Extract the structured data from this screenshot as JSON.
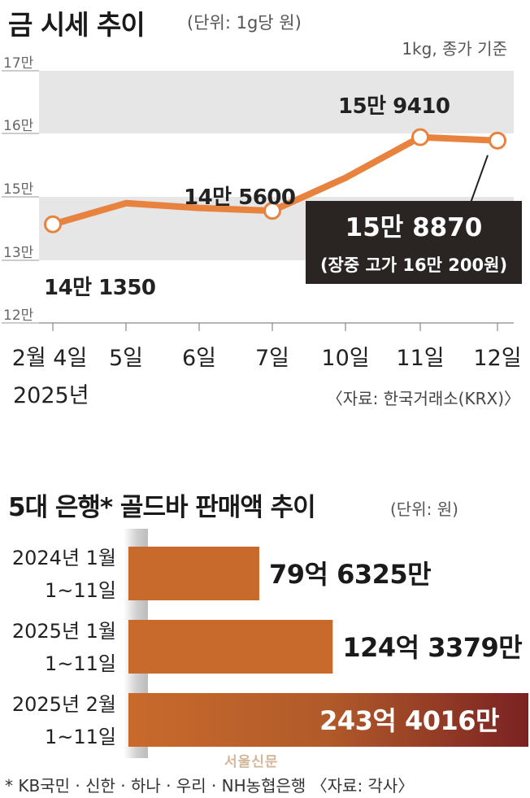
{
  "header": {
    "title": "금 시세 추이",
    "unit": "(단위: 1g당 원)",
    "basis": "1kg, 종가 기준"
  },
  "colors": {
    "line": "#e8823f",
    "band": "#e6e6e6",
    "callout_bg": "#2a2523",
    "bar_start": "#c86a2c",
    "bar_end": "#7a2222"
  },
  "chart_data": [
    {
      "type": "line",
      "title": "금 시세 추이",
      "unit": "(단위: 1g당 원)",
      "note": "1kg, 종가 기준",
      "categories": [
        "2월 4일",
        "5일",
        "6일",
        "7일",
        "10일",
        "11일",
        "12일"
      ],
      "x_sublabel": "2025년",
      "values": [
        141350,
        148000,
        146500,
        145600,
        153000,
        159410,
        158870
      ],
      "yticks": [
        120000,
        130000,
        150000,
        160000,
        170000
      ],
      "ytick_labels": [
        "12만",
        "13만",
        "15만",
        "16만",
        "17만"
      ],
      "ylim": [
        120000,
        170000
      ],
      "marked_points": [
        0,
        3,
        5,
        6
      ],
      "data_labels": [
        {
          "index": 0,
          "text": "14만 1350"
        },
        {
          "index": 3,
          "text": "14만 5600"
        },
        {
          "index": 5,
          "text": "15만 9410"
        }
      ],
      "callout": {
        "index": 6,
        "value_text": "15만 8870",
        "sub_text": "(장중 고가 16만 200원)"
      },
      "source": "〈자료: 한국거래소(KRX)〉"
    },
    {
      "type": "bar",
      "orientation": "horizontal",
      "title": "5대 은행* 골드바 판매액 추이",
      "unit": "(단위: 원)",
      "categories": [
        "2024년 1월 1~11일",
        "2025년 1월 1~11일",
        "2025년 2월 1~11일"
      ],
      "category_lines": [
        [
          "2024년 1월",
          "1~11일"
        ],
        [
          "2025년 1월",
          "1~11일"
        ],
        [
          "2025년 2월",
          "1~11일"
        ]
      ],
      "values": [
        7963250000,
        12433790000,
        24340160000
      ],
      "value_labels": [
        "79억 6325만",
        "124억 3379만",
        "243억 4016만"
      ]
    }
  ],
  "footer": {
    "footnote": "* KB국민 · 신한 · 하나 · 우리 · NH농협은행 〈자료: 각사〉",
    "watermark": "서울신문"
  }
}
